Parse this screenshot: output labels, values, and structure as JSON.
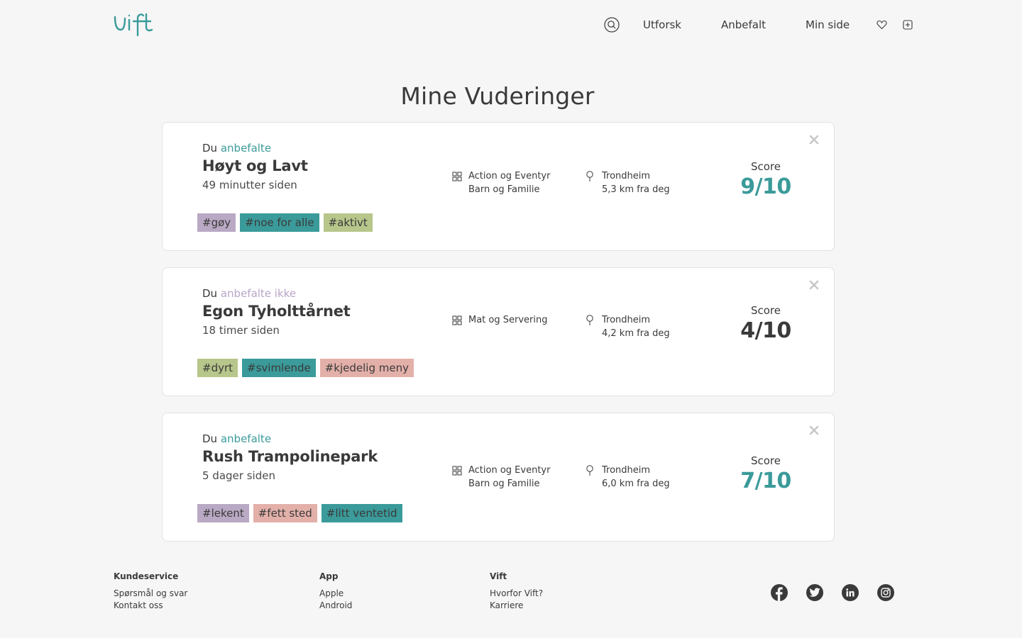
{
  "brand": {
    "logo_text": "vift",
    "accent": "#3b9a9a"
  },
  "nav": {
    "search_icon": "search-icon",
    "links": [
      "Utforsk",
      "Anbefalt",
      "Min side"
    ],
    "heart_icon": "heart-icon",
    "add_icon": "plus-square-icon"
  },
  "page": {
    "title": "Mine Vuderinger"
  },
  "reviews": [
    {
      "prefix": "Du",
      "verdict": "anbefalte",
      "name": "Høyt og Lavt",
      "time": "49 minutter siden",
      "tags": [
        "#gøy",
        "#noe for alle",
        "#aktivt"
      ],
      "categories": [
        "Action og Eventyr",
        "Barn og Familie"
      ],
      "city": "Trondheim",
      "distance": "5,3 km fra deg",
      "score_label": "Score",
      "score": "9/10"
    },
    {
      "prefix": "Du",
      "verdict": "anbefalte ikke",
      "name": "Egon Tyholttårnet",
      "time": "18 timer siden",
      "tags": [
        "#dyrt",
        "#svimlende",
        "#kjedelig meny"
      ],
      "categories": [
        "Mat og Servering"
      ],
      "city": "Trondheim",
      "distance": "4,2 km fra deg",
      "score_label": "Score",
      "score": "4/10"
    },
    {
      "prefix": "Du",
      "verdict": "anbefalte",
      "name": "Rush Trampolinepark",
      "time": "5 dager siden",
      "tags": [
        "#lekent",
        "#fett sted",
        "#litt ventetid"
      ],
      "categories": [
        "Action og Eventyr",
        "Barn og Familie"
      ],
      "city": "Trondheim",
      "distance": "6,0 km fra deg",
      "score_label": "Score",
      "score": "7/10"
    }
  ],
  "footer": {
    "columns": [
      {
        "heading": "Kundeservice",
        "items": [
          "Spørsmål og svar",
          "Kontakt oss"
        ]
      },
      {
        "heading": "App",
        "items": [
          "Apple",
          "Android"
        ]
      },
      {
        "heading": "Vift",
        "items": [
          "Hvorfor Vift?",
          "Karriere"
        ]
      }
    ],
    "social_icons": [
      "facebook-icon",
      "twitter-icon",
      "linkedin-icon",
      "instagram-icon"
    ]
  }
}
